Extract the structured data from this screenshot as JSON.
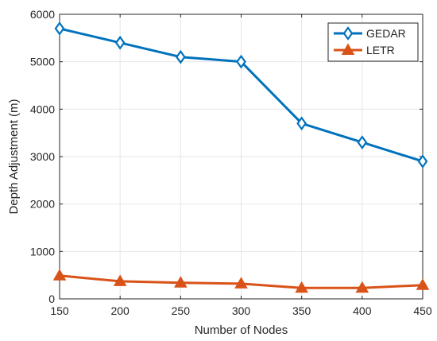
{
  "chart_data": {
    "type": "line",
    "xlabel": "Number of Nodes",
    "ylabel": "Depth Adjustment (m)",
    "x": [
      150,
      200,
      250,
      300,
      350,
      400,
      450
    ],
    "xlim": [
      150,
      450
    ],
    "ylim": [
      0,
      6000
    ],
    "xticks": [
      "150",
      "200",
      "250",
      "300",
      "350",
      "400",
      "450"
    ],
    "yticks": [
      "0",
      "1000",
      "2000",
      "3000",
      "4000",
      "5000",
      "6000"
    ],
    "grid": true,
    "legend_position": "top-right",
    "series": [
      {
        "name": "GEDAR",
        "values": [
          5700,
          5400,
          5100,
          5000,
          3700,
          3300,
          2900
        ],
        "color": "#0072BD",
        "marker": "diamond"
      },
      {
        "name": "LETR",
        "values": [
          490,
          370,
          340,
          320,
          230,
          230,
          290
        ],
        "color": "#D95319",
        "marker": "triangle"
      }
    ]
  }
}
